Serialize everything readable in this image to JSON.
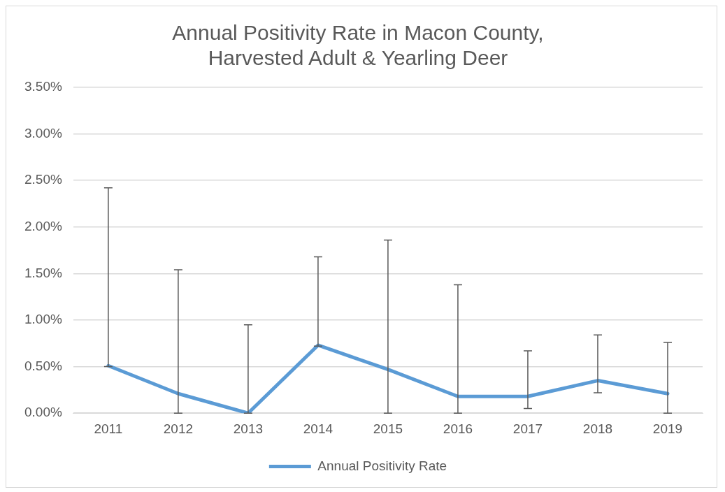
{
  "chart_data": {
    "type": "line",
    "title": [
      "Annual Positivity Rate in Macon County,",
      "Harvested Adult & Yearling Deer"
    ],
    "categories": [
      "2011",
      "2012",
      "2013",
      "2014",
      "2015",
      "2016",
      "2017",
      "2018",
      "2019"
    ],
    "series": [
      {
        "name": "Annual Positivity Rate",
        "color": "#5b9bd5",
        "values": [
          0.51,
          0.21,
          0,
          0.73,
          0.47,
          0.18,
          0.18,
          0.35,
          0.21
        ],
        "errors": [
          [
            0.5,
            2.42
          ],
          [
            0,
            1.54
          ],
          [
            0,
            0.95
          ],
          [
            0.72,
            1.68
          ],
          [
            0,
            1.86
          ],
          [
            0,
            1.38
          ],
          [
            0.05,
            0.67
          ],
          [
            0.22,
            0.84
          ],
          [
            0,
            0.76
          ]
        ]
      }
    ],
    "ylim": [
      0,
      3.5
    ],
    "yticks": [
      {
        "value": 0,
        "label": "0.00%"
      },
      {
        "value": 0.5,
        "label": "0.50%"
      },
      {
        "value": 1,
        "label": "1.00%"
      },
      {
        "value": 1.5,
        "label": "1.50%"
      },
      {
        "value": 2,
        "label": "2.00%"
      },
      {
        "value": 2.5,
        "label": "2.50%"
      },
      {
        "value": 3,
        "label": "3.00%"
      },
      {
        "value": 3.5,
        "label": "3.50%"
      }
    ],
    "grid": "y",
    "legend": "bottom",
    "marker": "none",
    "line_style": "solid"
  }
}
